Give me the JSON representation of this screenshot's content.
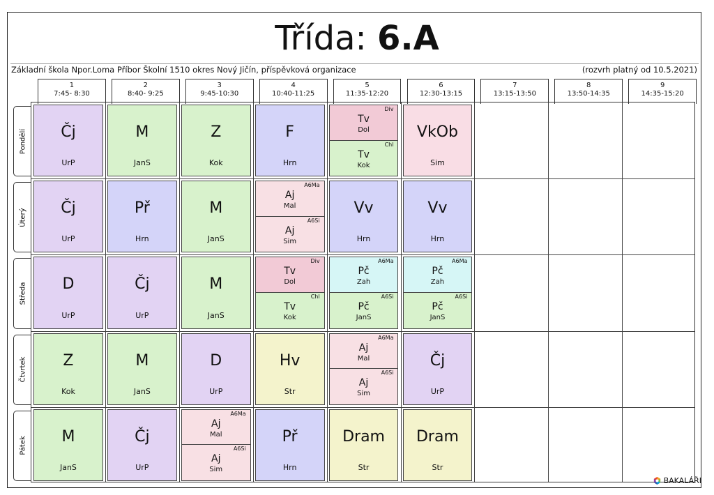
{
  "title": {
    "prefix": "Třída: ",
    "class": "6.A"
  },
  "school": "Základní škola Npor.Loma Příbor Školní 1510 okres Nový Jičín, příspěvková organizace",
  "valid_from": "(rozvrh platný od 10.5.2021)",
  "periods": [
    {
      "num": "1",
      "time": "7:45- 8:30"
    },
    {
      "num": "2",
      "time": "8:40- 9:25"
    },
    {
      "num": "3",
      "time": "9:45-10:30"
    },
    {
      "num": "4",
      "time": "10:40-11:25"
    },
    {
      "num": "5",
      "time": "11:35-12:20"
    },
    {
      "num": "6",
      "time": "12:30-13:15"
    },
    {
      "num": "7",
      "time": "13:15-13:50"
    },
    {
      "num": "8",
      "time": "13:50-14:35"
    },
    {
      "num": "9",
      "time": "14:35-15:20"
    }
  ],
  "days": [
    "Pondělí",
    "Úterý",
    "Středa",
    "Čtvrtek",
    "Pátek"
  ],
  "colors": {
    "cj": "#e2d3f3",
    "m": "#d8f2cc",
    "z": "#d8f2cc",
    "f": "#d4d4f9",
    "pr": "#d4d4f9",
    "tv_div": "#f2cad6",
    "tv_chl": "#d8f2cc",
    "vkob": "#f9dde5",
    "aj": "#f8e0e4",
    "vv": "#d4d4f9",
    "pc_ma": "#d6f6f6",
    "pc_si": "#d8f2cc",
    "d": "#e2d3f3",
    "hv": "#f4f3cc",
    "dram": "#f4f3cc"
  },
  "lessons": [
    [
      {
        "subject": "Čj",
        "teacher": "UrP",
        "color": "#e2d3f3"
      },
      {
        "subject": "M",
        "teacher": "JanS",
        "color": "#d8f2cc"
      },
      {
        "subject": "Z",
        "teacher": "Kok",
        "color": "#d8f2cc"
      },
      {
        "subject": "F",
        "teacher": "Hrn",
        "color": "#d4d4f9"
      },
      {
        "split": [
          {
            "group": "Div",
            "subject": "Tv",
            "teacher": "Dol",
            "color": "#f2cad6"
          },
          {
            "group": "Chl",
            "subject": "Tv",
            "teacher": "Kok",
            "color": "#d8f2cc"
          }
        ]
      },
      {
        "subject": "VkOb",
        "teacher": "Sim",
        "color": "#f9dde5"
      }
    ],
    [
      {
        "subject": "Čj",
        "teacher": "UrP",
        "color": "#e2d3f3"
      },
      {
        "subject": "Př",
        "teacher": "Hrn",
        "color": "#d4d4f9"
      },
      {
        "subject": "M",
        "teacher": "JanS",
        "color": "#d8f2cc"
      },
      {
        "split": [
          {
            "group": "A6Ma",
            "subject": "Aj",
            "teacher": "Mal",
            "color": "#f8e0e4"
          },
          {
            "group": "A6Si",
            "subject": "Aj",
            "teacher": "Sim",
            "color": "#f8e0e4"
          }
        ]
      },
      {
        "subject": "Vv",
        "teacher": "Hrn",
        "color": "#d4d4f9"
      },
      {
        "subject": "Vv",
        "teacher": "Hrn",
        "color": "#d4d4f9"
      }
    ],
    [
      {
        "subject": "D",
        "teacher": "UrP",
        "color": "#e2d3f3"
      },
      {
        "subject": "Čj",
        "teacher": "UrP",
        "color": "#e2d3f3"
      },
      {
        "subject": "M",
        "teacher": "JanS",
        "color": "#d8f2cc"
      },
      {
        "split": [
          {
            "group": "Div",
            "subject": "Tv",
            "teacher": "Dol",
            "color": "#f2cad6"
          },
          {
            "group": "Chl",
            "subject": "Tv",
            "teacher": "Kok",
            "color": "#d8f2cc"
          }
        ]
      },
      {
        "split": [
          {
            "group": "A6Ma",
            "subject": "Pč",
            "teacher": "Zah",
            "color": "#d6f6f6"
          },
          {
            "group": "A6Si",
            "subject": "Pč",
            "teacher": "JanS",
            "color": "#d8f2cc"
          }
        ]
      },
      {
        "split": [
          {
            "group": "A6Ma",
            "subject": "Pč",
            "teacher": "Zah",
            "color": "#d6f6f6"
          },
          {
            "group": "A6Si",
            "subject": "Pč",
            "teacher": "JanS",
            "color": "#d8f2cc"
          }
        ]
      }
    ],
    [
      {
        "subject": "Z",
        "teacher": "Kok",
        "color": "#d8f2cc"
      },
      {
        "subject": "M",
        "teacher": "JanS",
        "color": "#d8f2cc"
      },
      {
        "subject": "D",
        "teacher": "UrP",
        "color": "#e2d3f3"
      },
      {
        "subject": "Hv",
        "teacher": "Str",
        "color": "#f4f3cc"
      },
      {
        "split": [
          {
            "group": "A6Ma",
            "subject": "Aj",
            "teacher": "Mal",
            "color": "#f8e0e4"
          },
          {
            "group": "A6Si",
            "subject": "Aj",
            "teacher": "Sim",
            "color": "#f8e0e4"
          }
        ]
      },
      {
        "subject": "Čj",
        "teacher": "UrP",
        "color": "#e2d3f3"
      }
    ],
    [
      {
        "subject": "M",
        "teacher": "JanS",
        "color": "#d8f2cc"
      },
      {
        "subject": "Čj",
        "teacher": "UrP",
        "color": "#e2d3f3"
      },
      {
        "split": [
          {
            "group": "A6Ma",
            "subject": "Aj",
            "teacher": "Mal",
            "color": "#f8e0e4"
          },
          {
            "group": "A6Si",
            "subject": "Aj",
            "teacher": "Sim",
            "color": "#f8e0e4"
          }
        ]
      },
      {
        "subject": "Př",
        "teacher": "Hrn",
        "color": "#d4d4f9"
      },
      {
        "subject": "Dram",
        "teacher": "Str",
        "color": "#f4f3cc"
      },
      {
        "subject": "Dram",
        "teacher": "Str",
        "color": "#f4f3cc"
      }
    ]
  ],
  "logo": {
    "text": "BAKALÁŘI",
    "icon": "bakalari-logo-icon"
  }
}
